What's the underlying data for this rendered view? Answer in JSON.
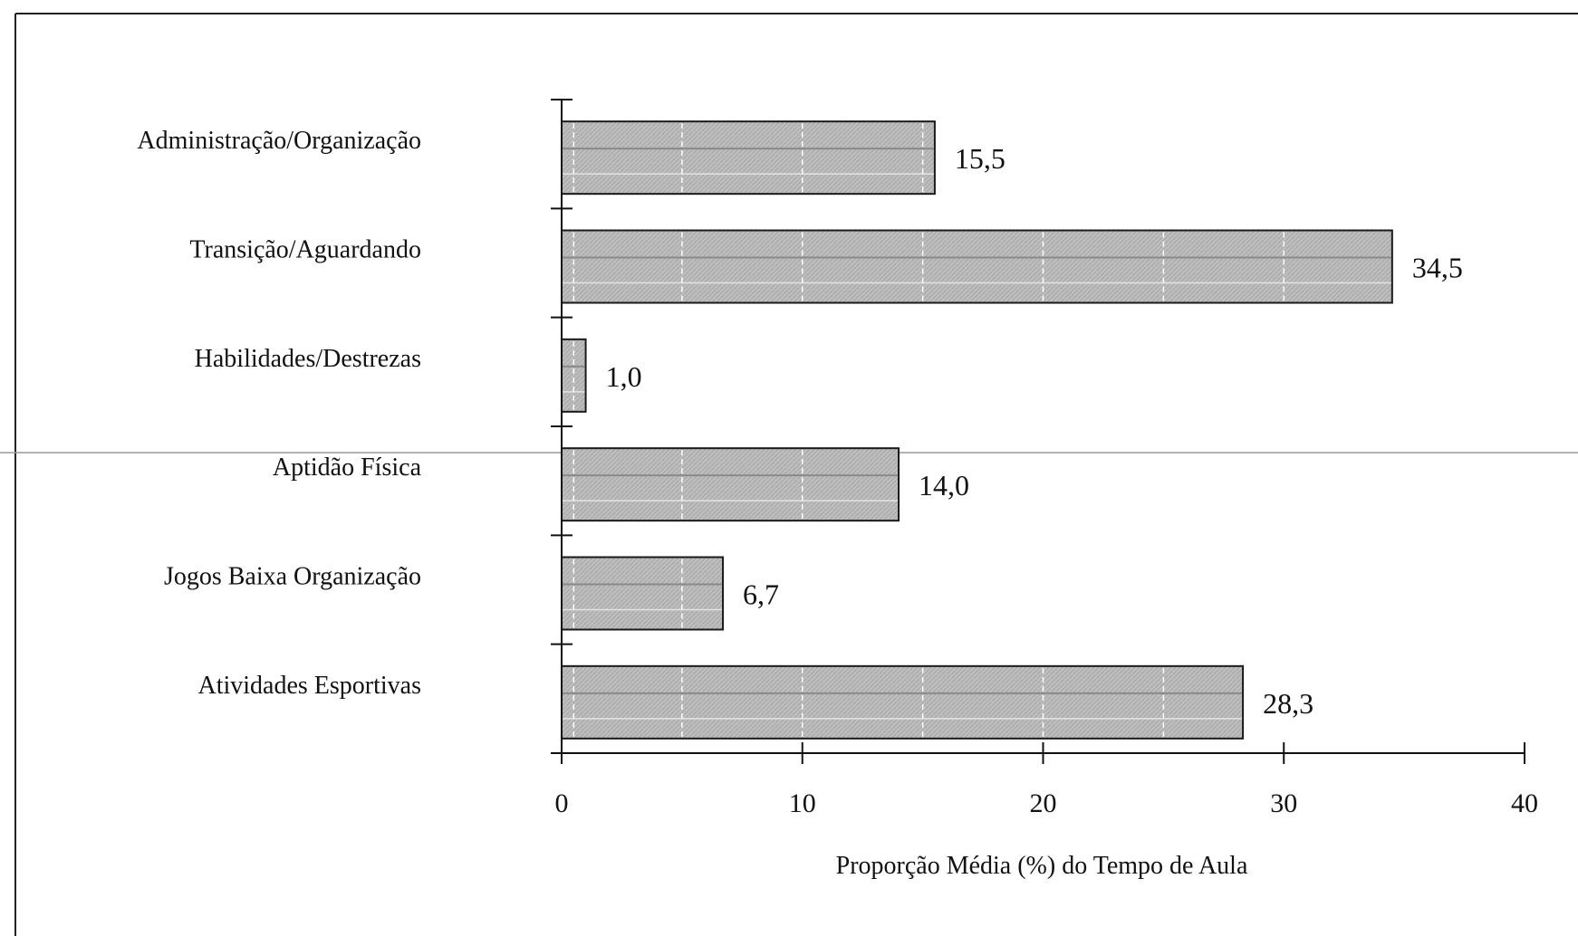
{
  "chart_data": {
    "type": "bar",
    "orientation": "horizontal",
    "categories": [
      "Administração/Organização",
      "Transição/Aguardando",
      "Habilidades/Destrezas",
      "Aptidão Física",
      "Jogos Baixa Organização",
      "Atividades Esportivas"
    ],
    "values": [
      15.5,
      34.5,
      1.0,
      14.0,
      6.7,
      28.3
    ],
    "value_labels": [
      "15,5",
      "34,5",
      "1,0",
      "14,0",
      "6,7",
      "28,3"
    ],
    "xlabel": "Proporção Média (%) do Tempo de Aula",
    "xlim": [
      0,
      40
    ],
    "xticks": [
      0,
      10,
      20,
      30,
      40
    ],
    "xtick_labels": [
      "0",
      "10",
      "20",
      "30",
      "40"
    ],
    "grid": false,
    "bar_color": "#bdbdbd",
    "bar_edge_color": "#1a1a1a"
  }
}
